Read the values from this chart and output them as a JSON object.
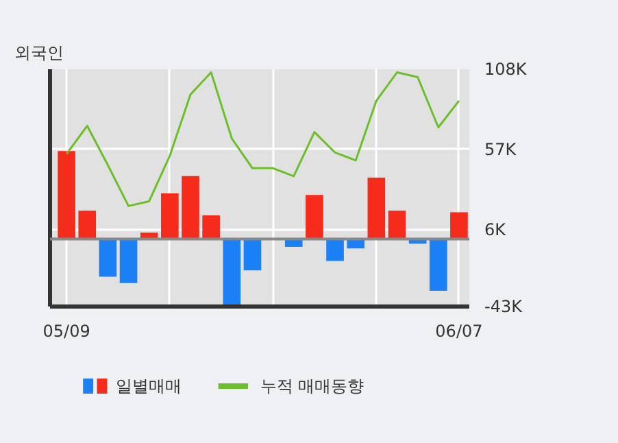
{
  "chart_data": {
    "type": "bar",
    "title": "외국인",
    "categories": [
      "05/09",
      null,
      null,
      null,
      null,
      null,
      null,
      null,
      null,
      null,
      null,
      null,
      null,
      null,
      null,
      null,
      null,
      null,
      null,
      "06/07"
    ],
    "series": [
      {
        "name": "일별매매",
        "values": [
          56,
          18,
          -24,
          -28,
          4,
          29,
          40,
          15,
          -43,
          -20,
          0,
          -5,
          28,
          -14,
          -6,
          39,
          18,
          -3,
          -33,
          17
        ],
        "colors": [
          "#f52b1b",
          "#f52b1b",
          "#1b7ff5",
          "#1b7ff5",
          "#f52b1b",
          "#f52b1b",
          "#f52b1b",
          "#f52b1b",
          "#1b7ff5",
          "#1b7ff5",
          "#f52b1b",
          "#1b7ff5",
          "#f52b1b",
          "#1b7ff5",
          "#1b7ff5",
          "#f52b1b",
          "#f52b1b",
          "#1b7ff5",
          "#1b7ff5",
          "#f52b1b"
        ]
      },
      {
        "name": "누적 매매동향",
        "type": "line",
        "color": "#6abf2a",
        "values": [
          54,
          72,
          47,
          21,
          24,
          53,
          92,
          106,
          64,
          45,
          45,
          40,
          68,
          55,
          50,
          88,
          106,
          103,
          71,
          88
        ]
      }
    ],
    "ylim": [
      -43,
      108
    ],
    "yticks": [
      {
        "value": 108,
        "label": "108K"
      },
      {
        "value": 57,
        "label": "57K"
      },
      {
        "value": 6,
        "label": "6K"
      },
      {
        "value": -43,
        "label": "-43K"
      }
    ],
    "grid": true,
    "legend": "bottom",
    "marker": "none",
    "line_style": "solid"
  }
}
